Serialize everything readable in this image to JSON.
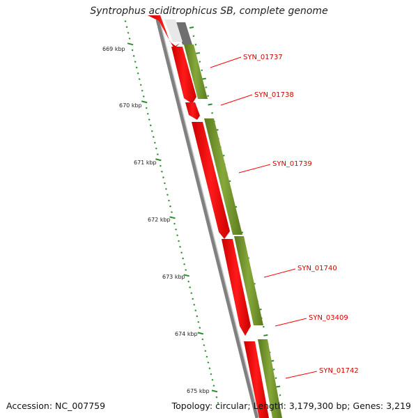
{
  "title": "Syntrophus aciditrophicus SB, complete genome",
  "footer": {
    "accession": "Accession: NC_007759",
    "topology": "Topology: circular; Length: 3,179,300 bp; Genes: 3,219"
  },
  "scale_labels": [
    "669 kbp",
    "670 kbp",
    "671 kbp",
    "672 kbp",
    "673 kbp",
    "674 kbp",
    "675 kbp"
  ],
  "gene_labels": [
    "SYN_01737",
    "SYN_01738",
    "SYN_01739",
    "SYN_01740",
    "SYN_03409",
    "SYN_01742"
  ],
  "colors": {
    "gene_forward": "#ff0000",
    "gene_reverse": "#6b8e23",
    "backbone": "#808080",
    "scale_ticks": "#2e8b2e",
    "label_line": "#ff0000"
  }
}
